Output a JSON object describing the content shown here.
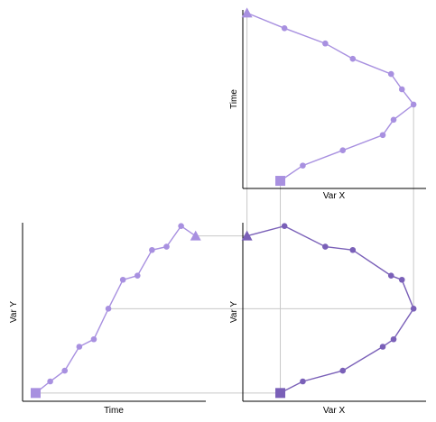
{
  "colors": {
    "light_series": "#a890e0",
    "dark_series": "#7a60b8",
    "guide": "#c8c8c8",
    "axis": "#000000"
  },
  "chart_data": [
    {
      "type": "line",
      "panel": "top-right",
      "xlabel": "Var X",
      "ylabel": "Time",
      "x": [
        -0.6,
        -0.33,
        0.15,
        0.63,
        0.76,
        1.0,
        0.86,
        0.73,
        0.27,
        -0.06,
        -0.55,
        -1.0
      ],
      "y": [
        1,
        2,
        3,
        4,
        5,
        6,
        7,
        8,
        9,
        10,
        11,
        12
      ],
      "start_marker": "square",
      "end_marker": "triangle",
      "color": "light_series",
      "xlim": [
        -1.05,
        1.15
      ],
      "ylim": [
        0.5,
        12.2
      ]
    },
    {
      "type": "line",
      "panel": "bottom-left",
      "xlabel": "Time",
      "ylabel": "Var Y",
      "x": [
        12,
        11,
        10,
        9,
        8,
        7,
        6,
        5,
        4,
        3,
        2,
        1
      ],
      "y": [
        0.88,
        1.0,
        0.75,
        0.71,
        0.4,
        0.35,
        0.0,
        -0.37,
        -0.46,
        -0.75,
        -0.88,
        -1.02
      ],
      "start_marker": "triangle",
      "end_marker": "square",
      "color": "light_series",
      "xlim": [
        0.1,
        12.7
      ],
      "ylim": [
        -1.12,
        1.04
      ]
    },
    {
      "type": "line",
      "panel": "bottom-right",
      "xlabel": "Var X",
      "ylabel": "Var Y",
      "x": [
        -1.0,
        -0.55,
        -0.06,
        0.27,
        0.73,
        0.86,
        1.0,
        0.76,
        0.63,
        0.15,
        -0.33,
        -0.6
      ],
      "y": [
        0.88,
        1.0,
        0.75,
        0.71,
        0.4,
        0.35,
        0.0,
        -0.37,
        -0.46,
        -0.75,
        -0.88,
        -1.02
      ],
      "start_marker": "triangle",
      "end_marker": "square",
      "color": "dark_series",
      "xlim": [
        -1.05,
        1.15
      ],
      "ylim": [
        -1.12,
        1.04
      ]
    }
  ]
}
